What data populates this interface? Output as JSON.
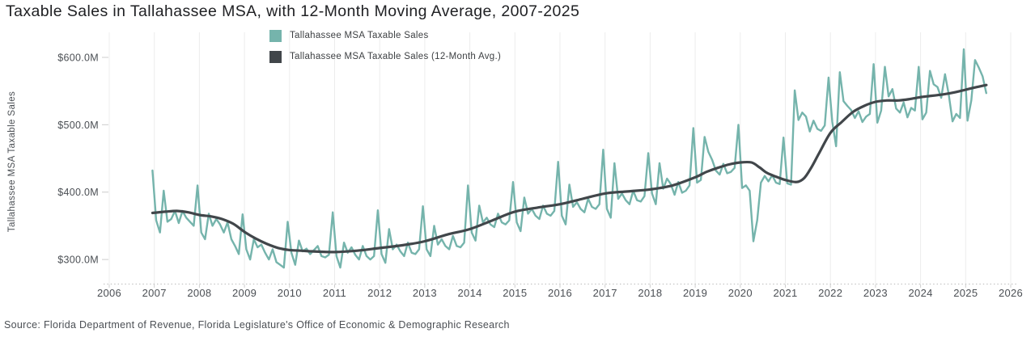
{
  "title": "Taxable Sales in Tallahassee MSA, with 12-Month Moving Average, 2007-2025",
  "source": "Source: Florida Department of Revenue, Florida Legislature's Office of Economic & Demographic Research",
  "legend": [
    {
      "label": "Tallahassee MSA Taxable Sales",
      "color": "#75b4ac"
    },
    {
      "label": "Tallahassee MSA Taxable Sales (12-Month Avg.)",
      "color": "#41464a"
    }
  ],
  "y_axis": {
    "title": "Tallahassee MSA Taxable Sales",
    "ticks": [
      {
        "value": 600,
        "label": "$600.0M"
      },
      {
        "value": 500,
        "label": "$500.0M"
      },
      {
        "value": 400,
        "label": "$400.0M"
      },
      {
        "value": 300,
        "label": "$300.0M"
      }
    ]
  },
  "x_axis": {
    "ticks": [
      2006,
      2007,
      2008,
      2009,
      2010,
      2011,
      2012,
      2013,
      2014,
      2015,
      2016,
      2017,
      2018,
      2019,
      2020,
      2021,
      2022,
      2023,
      2024,
      2025,
      2026
    ]
  },
  "chart_data": {
    "type": "line",
    "title": "Taxable Sales in Tallahassee MSA, with 12-Month Moving Average, 2007-2025",
    "xlabel": "",
    "ylabel": "Tallahassee MSA Taxable Sales",
    "xlim": [
      2006,
      2026
    ],
    "ylim": [
      260,
      640
    ],
    "grid": "vertical-yearly",
    "legend_position": "top-center",
    "units": "USD millions",
    "series": [
      {
        "name": "Tallahassee MSA Taxable Sales",
        "color": "#75b4ac",
        "frequency": "monthly",
        "start_year": 2006,
        "start_month": 12,
        "values": [
          432,
          358,
          340,
          402,
          356,
          360,
          372,
          354,
          372,
          362,
          356,
          350,
          410,
          340,
          330,
          368,
          350,
          360,
          352,
          340,
          355,
          330,
          320,
          308,
          367,
          315,
          300,
          330,
          318,
          322,
          310,
          300,
          315,
          296,
          292,
          288,
          356,
          310,
          292,
          328,
          312,
          316,
          308,
          314,
          320,
          305,
          303,
          307,
          370,
          305,
          288,
          325,
          310,
          318,
          307,
          300,
          320,
          305,
          300,
          305,
          373,
          308,
          295,
          345,
          315,
          322,
          312,
          305,
          325,
          310,
          308,
          315,
          379,
          315,
          305,
          350,
          322,
          330,
          320,
          315,
          335,
          320,
          318,
          325,
          410,
          340,
          328,
          380,
          355,
          362,
          352,
          348,
          368,
          355,
          352,
          358,
          415,
          355,
          342,
          392,
          368,
          375,
          365,
          360,
          380,
          368,
          365,
          372,
          445,
          365,
          352,
          411,
          378,
          385,
          375,
          370,
          390,
          378,
          375,
          382,
          463,
          375,
          362,
          443,
          390,
          398,
          388,
          382,
          402,
          388,
          386,
          394,
          458,
          398,
          382,
          443,
          405,
          420,
          412,
          396,
          415,
          399,
          402,
          410,
          495,
          414,
          418,
          482,
          460,
          448,
          432,
          426,
          442,
          428,
          430,
          436,
          500,
          406,
          410,
          402,
          327,
          358,
          414,
          424,
          416,
          425,
          414,
          412,
          481,
          413,
          411,
          551,
          507,
          518,
          512,
          490,
          506,
          494,
          491,
          499,
          570,
          504,
          468,
          578,
          535,
          528,
          522,
          510,
          520,
          504,
          512,
          516,
          590,
          503,
          521,
          586,
          542,
          553,
          524,
          518,
          533,
          511,
          525,
          521,
          586,
          508,
          518,
          580,
          560,
          556,
          540,
          575,
          545,
          505,
          516,
          510,
          612,
          506,
          536,
          596,
          585,
          572,
          547
        ]
      },
      {
        "name": "Tallahassee MSA Taxable Sales (12-Month Avg.)",
        "color": "#41464a",
        "points": [
          [
            2006.96,
            369
          ],
          [
            2007.25,
            371
          ],
          [
            2007.5,
            372
          ],
          [
            2007.75,
            370
          ],
          [
            2008,
            366
          ],
          [
            2008.25,
            364
          ],
          [
            2008.5,
            360
          ],
          [
            2008.75,
            353
          ],
          [
            2009,
            341
          ],
          [
            2009.25,
            331
          ],
          [
            2009.5,
            323
          ],
          [
            2009.75,
            317
          ],
          [
            2010,
            314
          ],
          [
            2010.25,
            313
          ],
          [
            2010.5,
            312
          ],
          [
            2011,
            311
          ],
          [
            2011.5,
            313
          ],
          [
            2012,
            317
          ],
          [
            2012.5,
            321
          ],
          [
            2013,
            327
          ],
          [
            2013.5,
            337
          ],
          [
            2014,
            345
          ],
          [
            2014.5,
            358
          ],
          [
            2015,
            371
          ],
          [
            2015.5,
            377
          ],
          [
            2016,
            382
          ],
          [
            2016.5,
            390
          ],
          [
            2017,
            398
          ],
          [
            2017.5,
            401
          ],
          [
            2018,
            404
          ],
          [
            2018.5,
            410
          ],
          [
            2019,
            422
          ],
          [
            2019.25,
            430
          ],
          [
            2019.5,
            436
          ],
          [
            2019.75,
            441
          ],
          [
            2020,
            444
          ],
          [
            2020.25,
            444
          ],
          [
            2020.42,
            437
          ],
          [
            2020.58,
            429
          ],
          [
            2020.75,
            424
          ],
          [
            2021,
            418
          ],
          [
            2021.25,
            415
          ],
          [
            2021.42,
            421
          ],
          [
            2021.58,
            437
          ],
          [
            2021.75,
            458
          ],
          [
            2022,
            488
          ],
          [
            2022.25,
            504
          ],
          [
            2022.5,
            519
          ],
          [
            2022.75,
            528
          ],
          [
            2023,
            534
          ],
          [
            2023.25,
            536
          ],
          [
            2023.5,
            536
          ],
          [
            2023.75,
            538
          ],
          [
            2024,
            541
          ],
          [
            2024.25,
            543
          ],
          [
            2024.5,
            545
          ],
          [
            2024.75,
            548
          ],
          [
            2025,
            552
          ],
          [
            2025.25,
            556
          ],
          [
            2025.46,
            559
          ]
        ]
      }
    ]
  }
}
